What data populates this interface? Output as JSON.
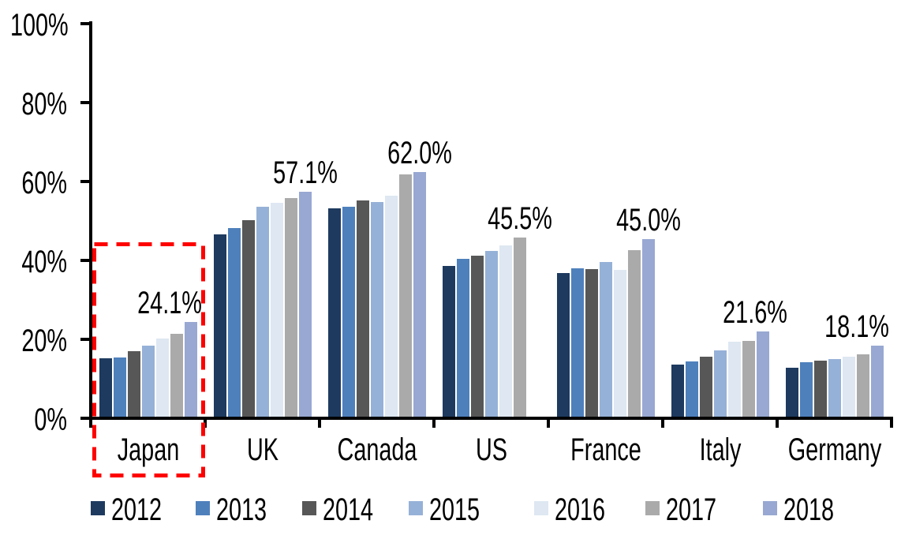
{
  "chart_data": {
    "type": "bar",
    "title": "",
    "xlabel": "",
    "ylabel": "",
    "categories": [
      "Japan",
      "UK",
      "Canada",
      "US",
      "France",
      "Italy",
      "Germany"
    ],
    "series": [
      {
        "name": "2012",
        "color": "#1E3A5F",
        "values": [
          14.8,
          46.3,
          52.9,
          38.2,
          36.5,
          13.2,
          12.4
        ]
      },
      {
        "name": "2013",
        "color": "#4E80BC",
        "values": [
          15.0,
          47.8,
          53.3,
          40.0,
          37.6,
          14.0,
          13.9
        ]
      },
      {
        "name": "2014",
        "color": "#575757",
        "values": [
          16.6,
          49.8,
          54.8,
          40.8,
          37.5,
          15.2,
          14.2
        ]
      },
      {
        "name": "2015",
        "color": "#96B1D7",
        "values": [
          18.0,
          53.3,
          54.5,
          42.0,
          39.2,
          16.8,
          14.7
        ]
      },
      {
        "name": "2016",
        "color": "#DEE7F2",
        "values": [
          19.9,
          54.3,
          56.0,
          43.5,
          37.3,
          19.0,
          15.2
        ]
      },
      {
        "name": "2017",
        "color": "#AAAAAA",
        "values": [
          21.1,
          55.5,
          61.5,
          45.5,
          42.2,
          19.3,
          15.9
        ]
      },
      {
        "name": "2018",
        "color": "#98A8D2",
        "values": [
          24.1,
          57.1,
          62.0,
          null,
          45.0,
          21.6,
          18.1
        ]
      }
    ],
    "annotations": [
      {
        "category": "Japan",
        "year": "2018",
        "text": "24.1%"
      },
      {
        "category": "UK",
        "year": "2018",
        "text": "57.1%"
      },
      {
        "category": "Canada",
        "year": "2018",
        "text": "62.0%"
      },
      {
        "category": "US",
        "year": "2017",
        "text": "45.5%"
      },
      {
        "category": "France",
        "year": "2018",
        "text": "45.0%"
      },
      {
        "category": "Italy",
        "year": "2018",
        "text": "21.6%"
      },
      {
        "category": "Germany",
        "year": "2018",
        "text": "18.1%"
      }
    ],
    "y_axis": {
      "tick_labels": [
        "0%",
        "20%",
        "40%",
        "60%",
        "80%",
        "100%"
      ],
      "ylim": [
        0,
        100
      ],
      "grid": false
    },
    "legend": {
      "position": "bottom",
      "entries": [
        "2012",
        "2013",
        "2014",
        "2015",
        "2016",
        "2017",
        "2018"
      ]
    },
    "highlight": {
      "category": "Japan",
      "shape": "dashed-rectangle",
      "color": "#FF0000"
    },
    "colors": {
      "axis": "#000000",
      "text": "#000000",
      "background": "#FFFFFF"
    }
  }
}
